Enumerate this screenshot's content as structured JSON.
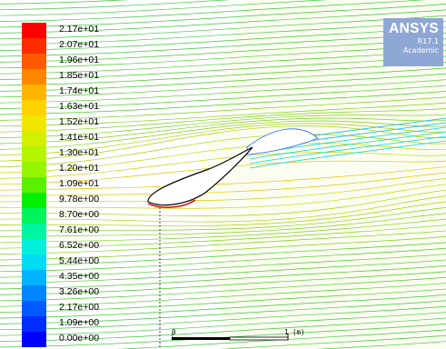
{
  "legend": {
    "labels": [
      "2.17e+01",
      "2.07e+01",
      "1.96e+01",
      "1.85e+01",
      "1.74e+01",
      "1.63e+01",
      "1.52e+01",
      "1.41e+01",
      "1.30e+01",
      "1.20e+01",
      "1.09e+01",
      "9.78e+00",
      "8.70e+00",
      "7.61e+00",
      "6.52e+00",
      "5.44e+00",
      "4.35e+00",
      "3.26e+00",
      "2.17e+00",
      "1.09e+00",
      "0.00e+00"
    ],
    "colors": [
      "#ff0000",
      "#ff2c00",
      "#ff5a00",
      "#ff8700",
      "#ffb400",
      "#ffd200",
      "#f0e600",
      "#d2f000",
      "#b4f500",
      "#96f500",
      "#5af000",
      "#00f000",
      "#00f55a",
      "#00f5a0",
      "#00f0dc",
      "#00dcf0",
      "#00b4ff",
      "#0087ff",
      "#005aff",
      "#002dff",
      "#0000ff"
    ]
  },
  "logo": {
    "brand": "ANSYS",
    "version": "R17.1",
    "edition": "Academic",
    "color": "#8fa7d4"
  },
  "scale": {
    "left_label": "0",
    "right_label": "1 (m)"
  },
  "colors": {
    "background": "#ffffff",
    "airfoil_outline": "#000000"
  }
}
